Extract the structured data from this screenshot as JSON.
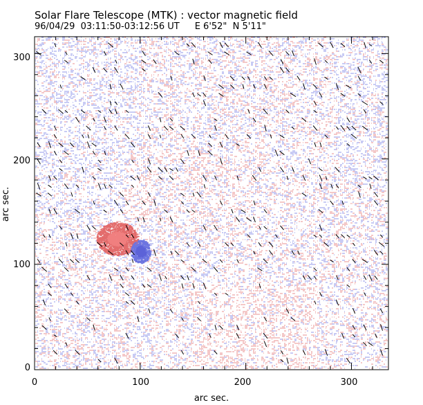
{
  "figure": {
    "title": "Solar Flare Telescope (MTK) : vector magnetic field",
    "date_time": "96/04/29  03:11:50-03:12:56 UT",
    "position": "E 6'52\"  N 5'11\""
  },
  "axes": {
    "xlabel": "arc sec.",
    "ylabel": "arc sec.",
    "x_range": [
      0,
      335
    ],
    "y_range": [
      0,
      316
    ],
    "x_ticks": [
      "0",
      "100",
      "200",
      "300"
    ],
    "y_ticks": [
      "0",
      "100",
      "200",
      "300"
    ]
  },
  "colors": {
    "positive_polarity": "#e36b6b",
    "negative_polarity": "#6c74e0",
    "transverse_field_vectors": "#000000",
    "frame": "#000000"
  },
  "features": {
    "positive_spot_center": [
      78,
      124
    ],
    "negative_spot_center": [
      100,
      112
    ]
  }
}
